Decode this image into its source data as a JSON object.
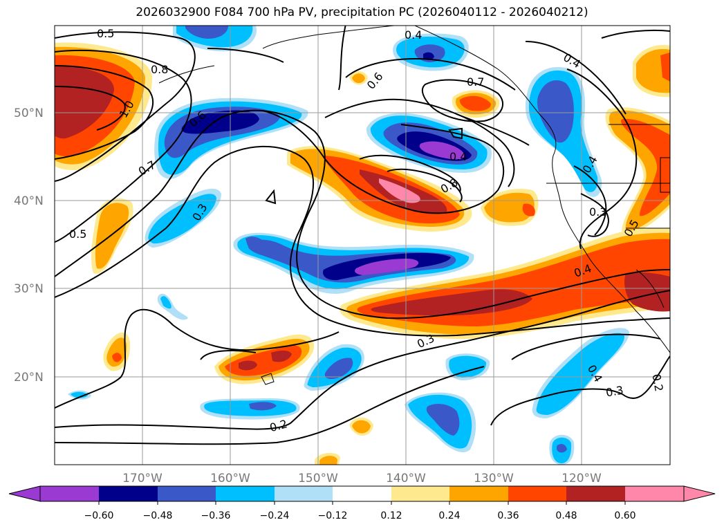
{
  "title": "2026032900 F084 700 hPa PV, precipitation PC (2026040112 - 2026040212)",
  "map": {
    "lat_labels": [
      "50°N",
      "40°N",
      "30°N",
      "20°N"
    ],
    "lon_labels": [
      "170°W",
      "160°W",
      "150°W",
      "140°W",
      "130°W",
      "120°W"
    ],
    "contour_labels": [
      "0.5",
      "0.8",
      "1.0",
      "0.6",
      "0.7",
      "0.5",
      "0.3",
      "0.4",
      "0.6",
      "0.7",
      "0.4",
      "0.8",
      "0.4",
      "0.3",
      "0.5",
      "0.4",
      "0.3",
      "0.3",
      "0.4",
      "0.2",
      "0.2",
      "0.4"
    ]
  },
  "colorbar": {
    "ticks": [
      "−0.60",
      "−0.48",
      "−0.36",
      "−0.24",
      "−0.12",
      "0.12",
      "0.24",
      "0.36",
      "0.48",
      "0.60"
    ],
    "colors": [
      "#9b3ad2",
      "#00008b",
      "#3a58c8",
      "#00bfff",
      "#afe0f8",
      "#ffffff",
      "#ffe98f",
      "#ffa500",
      "#ff4500",
      "#b22222",
      "#ff88aa"
    ]
  },
  "colors": {
    "neg_strong": "#9b3ad2",
    "neg_3": "#00008b",
    "neg_2": "#3a58c8",
    "neg_1": "#00bfff",
    "neg_0": "#afe0f8",
    "pos_0": "#ffe98f",
    "pos_1": "#ffa500",
    "pos_2": "#ff4500",
    "pos_3": "#b22222",
    "pos_strong": "#ff88aa"
  }
}
